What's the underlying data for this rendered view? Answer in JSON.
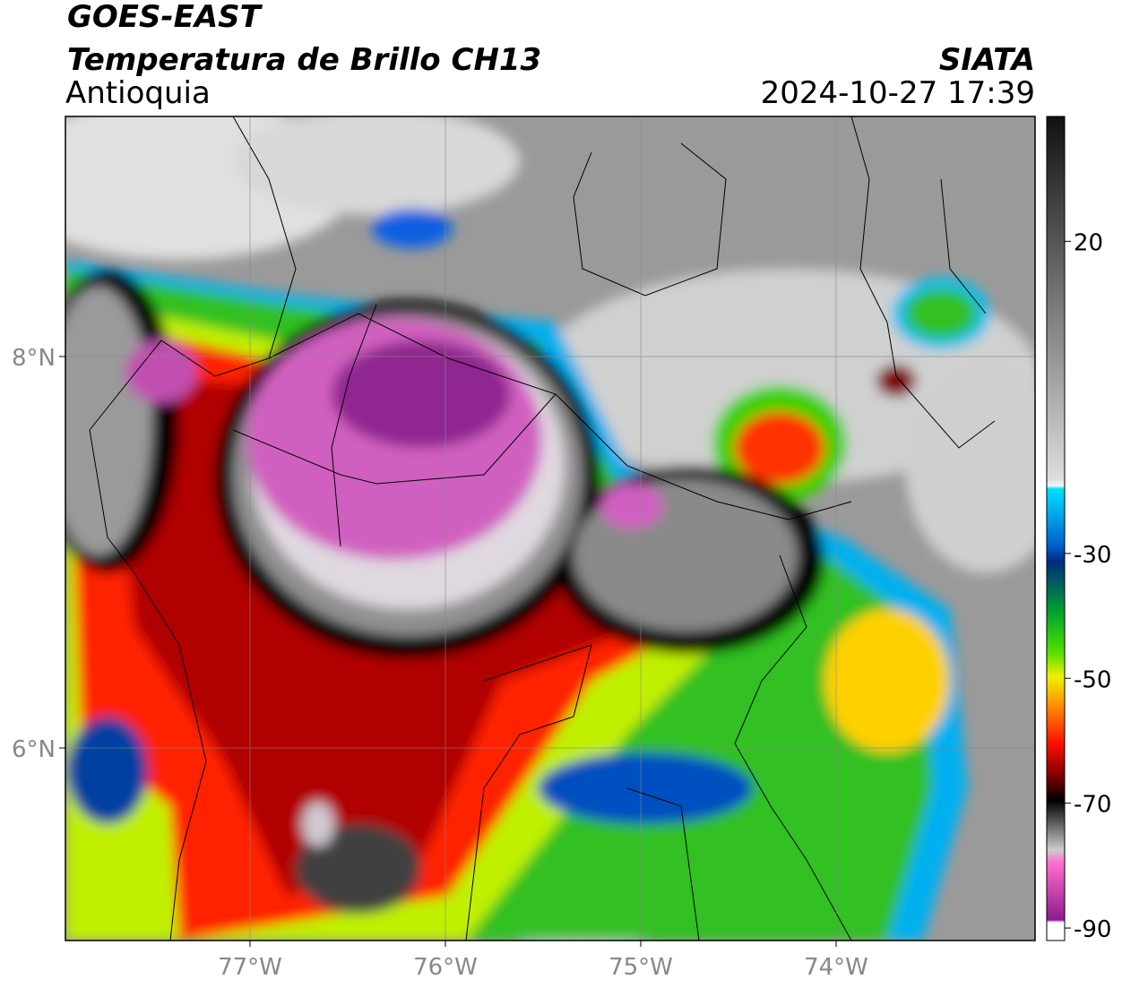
{
  "header": {
    "title": "GOES-EAST",
    "subtitle": "Temperatura de Brillo CH13",
    "region": "Antioquia",
    "source": "SIATA",
    "datetime": "2024-10-27 17:39"
  },
  "map": {
    "lat_ticks": [
      "8°N",
      "6°N"
    ],
    "lon_ticks": [
      "77°W",
      "76°W",
      "75°W",
      "74°W"
    ]
  },
  "colorbar": {
    "lim": [
      -92,
      40
    ],
    "ticks": [
      20,
      -30,
      -50,
      -70,
      -90
    ]
  }
}
